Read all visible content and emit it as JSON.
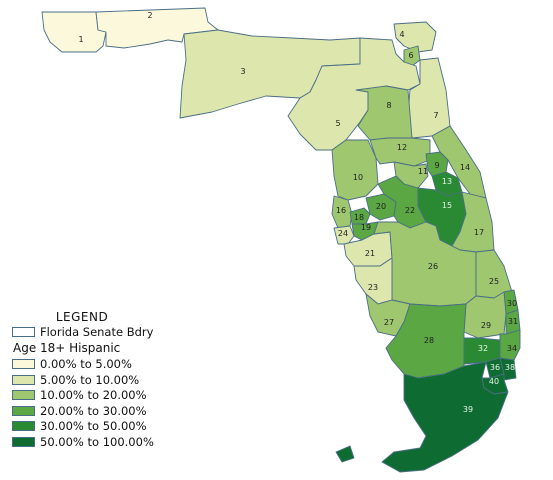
{
  "map": {
    "districts": [
      {
        "id": "1",
        "fill": "#fcf8dc"
      },
      {
        "id": "2",
        "fill": "#fcf8dc"
      },
      {
        "id": "3",
        "fill": "#dde6ac"
      },
      {
        "id": "4",
        "fill": "#dde6ac"
      },
      {
        "id": "5",
        "fill": "#dde6ac"
      },
      {
        "id": "6",
        "fill": "#9fc76f"
      },
      {
        "id": "7",
        "fill": "#dde6ac"
      },
      {
        "id": "8",
        "fill": "#9fc76f"
      },
      {
        "id": "9",
        "fill": "#5aa744"
      },
      {
        "id": "10",
        "fill": "#9fc76f"
      },
      {
        "id": "11",
        "fill": "#9fc76f"
      },
      {
        "id": "12",
        "fill": "#9fc76f"
      },
      {
        "id": "13",
        "fill": "#2a8a33"
      },
      {
        "id": "14",
        "fill": "#9fc76f"
      },
      {
        "id": "15",
        "fill": "#2a8a33"
      },
      {
        "id": "16",
        "fill": "#9fc76f"
      },
      {
        "id": "17",
        "fill": "#9fc76f"
      },
      {
        "id": "18",
        "fill": "#5aa744"
      },
      {
        "id": "19",
        "fill": "#5aa744"
      },
      {
        "id": "20",
        "fill": "#5aa744"
      },
      {
        "id": "21",
        "fill": "#dde6ac"
      },
      {
        "id": "22",
        "fill": "#5aa744"
      },
      {
        "id": "23",
        "fill": "#dde6ac"
      },
      {
        "id": "24",
        "fill": "#dde6ac"
      },
      {
        "id": "25",
        "fill": "#9fc76f"
      },
      {
        "id": "26",
        "fill": "#9fc76f"
      },
      {
        "id": "27",
        "fill": "#9fc76f"
      },
      {
        "id": "28",
        "fill": "#5aa744"
      },
      {
        "id": "29",
        "fill": "#9fc76f"
      },
      {
        "id": "30",
        "fill": "#5aa744"
      },
      {
        "id": "31",
        "fill": "#5aa744"
      },
      {
        "id": "32",
        "fill": "#2a8a33"
      },
      {
        "id": "34",
        "fill": "#5aa744"
      },
      {
        "id": "36",
        "fill": "#0e6c32"
      },
      {
        "id": "38",
        "fill": "#0e6c32"
      },
      {
        "id": "39",
        "fill": "#0e6c32"
      },
      {
        "id": "40",
        "fill": "#0e6c32"
      }
    ]
  },
  "legend": {
    "title": "LEGEND",
    "boundary_label": "Florida Senate Bdry",
    "boundary_fill": "#ffffff",
    "subtitle": "Age 18+ Hispanic",
    "classes": [
      {
        "label": "0.00% to 5.00%",
        "color": "#fcf8dc"
      },
      {
        "label": "5.00% to 10.00%",
        "color": "#dde6ac"
      },
      {
        "label": "10.00% to 20.00%",
        "color": "#9fc76f"
      },
      {
        "label": "20.00% to 30.00%",
        "color": "#5aa744"
      },
      {
        "label": "30.00% to 50.00%",
        "color": "#2a8a33"
      },
      {
        "label": "50.00% to 100.00%",
        "color": "#0e6c32"
      }
    ]
  }
}
